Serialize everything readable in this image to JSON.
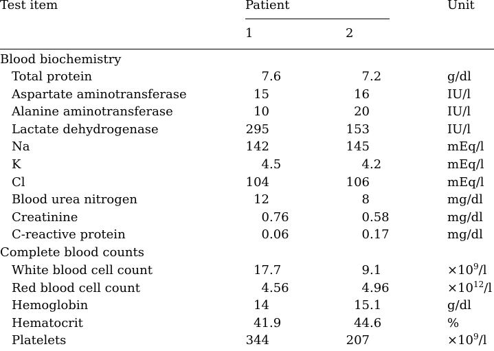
{
  "header": {
    "test_item": "Test item",
    "patient": "Patient",
    "unit": "Unit",
    "patient_1": "1",
    "patient_2": "2"
  },
  "sections": {
    "biochem": {
      "title": "Blood biochemistry",
      "rows": [
        {
          "item": "Total protein",
          "p1": "7.6",
          "p2": "7.2",
          "unit": "g/dl"
        },
        {
          "item": "Aspartate aminotransferase",
          "p1": "15",
          "p2": "16",
          "unit": "IU/l"
        },
        {
          "item": "Alanine aminotransferase",
          "p1": "10",
          "p2": "20",
          "unit": "IU/l"
        },
        {
          "item": "Lactate dehydrogenase",
          "p1": "295",
          "p2": "153",
          "unit": "IU/l"
        },
        {
          "item": "Na",
          "p1": "142",
          "p2": "145",
          "unit": "mEq/l"
        },
        {
          "item": "K",
          "p1": "4.5",
          "p2": "4.2",
          "unit": "mEq/l"
        },
        {
          "item": "Cl",
          "p1": "104",
          "p2": "106",
          "unit": "mEq/l"
        },
        {
          "item": "Blood urea nitrogen",
          "p1": "12",
          "p2": "8",
          "unit": "mg/dl"
        },
        {
          "item": "Creatinine",
          "p1": "0.76",
          "p2": "0.58",
          "unit": "mg/dl"
        },
        {
          "item": "C-reactive protein",
          "p1": "0.06",
          "p2": "0.17",
          "unit": "mg/dl"
        }
      ]
    },
    "cbc": {
      "title": "Complete blood counts",
      "rows": [
        {
          "item": "White blood cell count",
          "p1": "17.7",
          "p2": "9.1",
          "unit_pre": "×10",
          "unit_exp": "9",
          "unit_post": "/l"
        },
        {
          "item": "Red blood cell count",
          "p1": "4.56",
          "p2": "4.96",
          "unit_pre": "×10",
          "unit_exp": "12",
          "unit_post": "/l"
        },
        {
          "item": "Hemoglobin",
          "p1": "14",
          "p2": "15.1",
          "unit": "g/dl"
        },
        {
          "item": "Hematocrit",
          "p1": "41.9",
          "p2": "44.6",
          "unit": "%"
        },
        {
          "item": "Platelets",
          "p1": "344",
          "p2": "207",
          "unit_pre": "×10",
          "unit_exp": "9",
          "unit_post": "/l"
        }
      ]
    }
  }
}
